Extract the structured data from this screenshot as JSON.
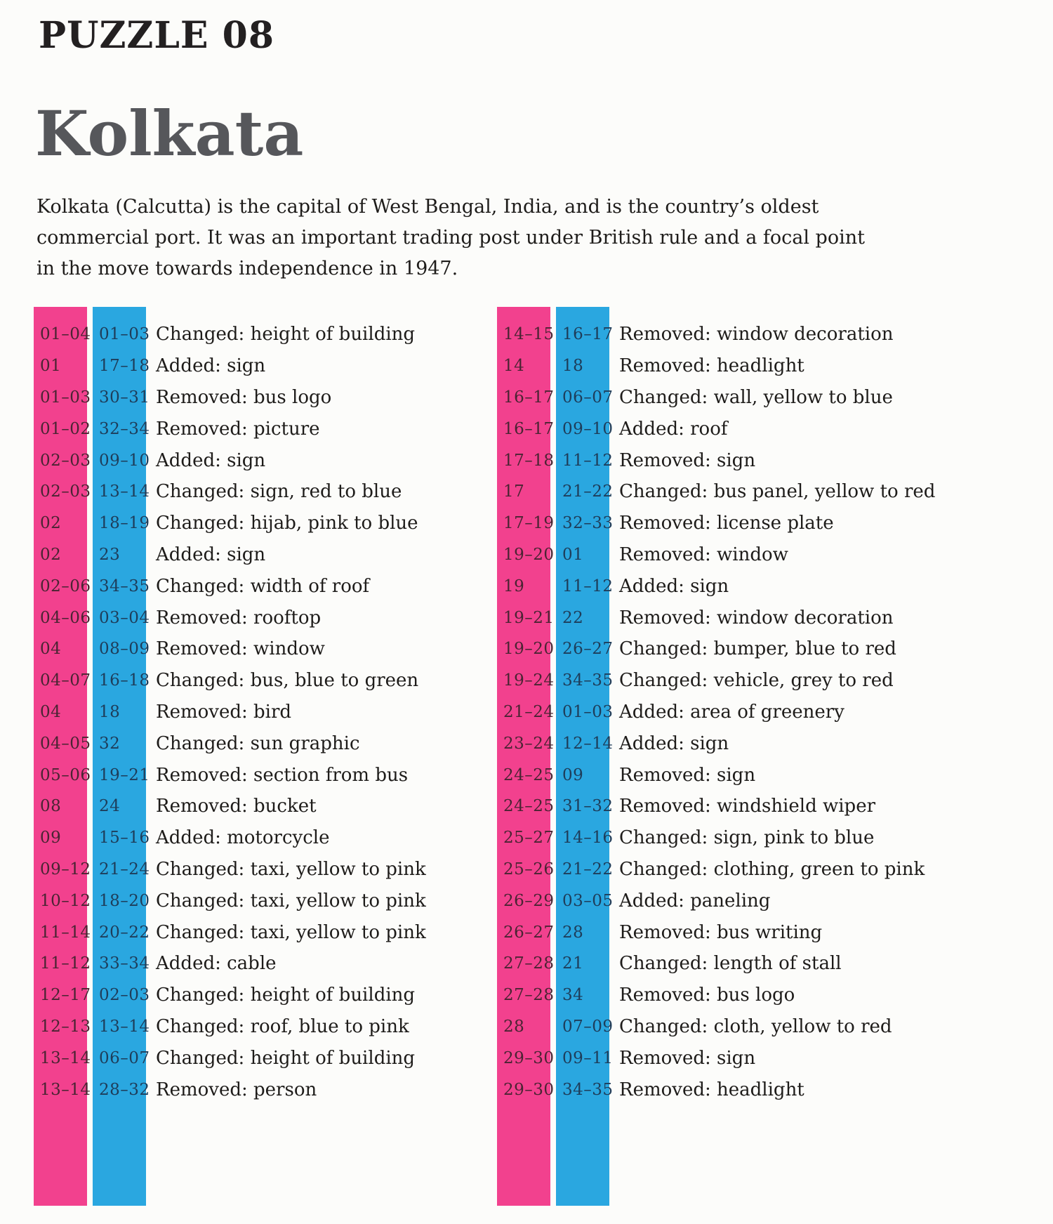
{
  "header": {
    "puzzle_label": "PUZZLE 08",
    "title": "Kolkata",
    "intro": "Kolkata (Calcutta) is the capital of West Bengal, India, and is the country’s oldest commercial port. It was an important trading post under British rule and a focal point in the move towards independence in 1947."
  },
  "legend": {
    "row_band_color": "#f2418e",
    "col_band_color": "#2aa7e0",
    "row_number_color": "#4a2433",
    "col_number_color": "#1e3d5a"
  },
  "answers": {
    "left": [
      {
        "row": "01–04",
        "col": "01–03",
        "desc": "Changed: height of building"
      },
      {
        "row": "01",
        "col": "17–18",
        "desc": "Added: sign"
      },
      {
        "row": "01–03",
        "col": "30–31",
        "desc": "Removed: bus logo"
      },
      {
        "row": "01–02",
        "col": "32–34",
        "desc": "Removed: picture"
      },
      {
        "row": "02–03",
        "col": "09–10",
        "desc": "Added: sign"
      },
      {
        "row": "02–03",
        "col": "13–14",
        "desc": "Changed: sign, red to blue"
      },
      {
        "row": "02",
        "col": "18–19",
        "desc": "Changed: hijab, pink to blue"
      },
      {
        "row": "02",
        "col": "23",
        "desc": "Added: sign"
      },
      {
        "row": "02–06",
        "col": "34–35",
        "desc": "Changed: width of roof"
      },
      {
        "row": "04–06",
        "col": "03–04",
        "desc": "Removed: rooftop"
      },
      {
        "row": "04",
        "col": "08–09",
        "desc": "Removed: window"
      },
      {
        "row": "04–07",
        "col": "16–18",
        "desc": "Changed: bus, blue to green"
      },
      {
        "row": "04",
        "col": "18",
        "desc": "Removed: bird"
      },
      {
        "row": "04–05",
        "col": "32",
        "desc": "Changed: sun graphic"
      },
      {
        "row": "05–06",
        "col": "19–21",
        "desc": "Removed: section from bus"
      },
      {
        "row": "08",
        "col": "24",
        "desc": "Removed: bucket"
      },
      {
        "row": "09",
        "col": "15–16",
        "desc": "Added: motorcycle"
      },
      {
        "row": "09–12",
        "col": "21–24",
        "desc": "Changed: taxi, yellow to pink"
      },
      {
        "row": "10–12",
        "col": "18–20",
        "desc": "Changed: taxi, yellow to pink"
      },
      {
        "row": "11–14",
        "col": "20–22",
        "desc": "Changed: taxi, yellow to pink"
      },
      {
        "row": "11–12",
        "col": "33–34",
        "desc": "Added: cable"
      },
      {
        "row": "12–17",
        "col": "02–03",
        "desc": "Changed: height of building"
      },
      {
        "row": "12–13",
        "col": "13–14",
        "desc": "Changed: roof, blue to pink"
      },
      {
        "row": "13–14",
        "col": "06–07",
        "desc": "Changed: height of building"
      },
      {
        "row": "13–14",
        "col": "28–32",
        "desc": "Removed: person"
      }
    ],
    "right": [
      {
        "row": "14–15",
        "col": "16–17",
        "desc": "Removed: window decoration"
      },
      {
        "row": "14",
        "col": "18",
        "desc": "Removed: headlight"
      },
      {
        "row": "16–17",
        "col": "06–07",
        "desc": "Changed: wall, yellow to blue"
      },
      {
        "row": "16–17",
        "col": "09–10",
        "desc": "Added: roof"
      },
      {
        "row": "17–18",
        "col": "11–12",
        "desc": "Removed: sign"
      },
      {
        "row": "17",
        "col": "21–22",
        "desc": "Changed: bus panel, yellow to red"
      },
      {
        "row": "17–19",
        "col": "32–33",
        "desc": "Removed: license plate"
      },
      {
        "row": "19–20",
        "col": "01",
        "desc": "Removed: window"
      },
      {
        "row": "19",
        "col": "11–12",
        "desc": "Added: sign"
      },
      {
        "row": "19–21",
        "col": "22",
        "desc": "Removed: window decoration"
      },
      {
        "row": "19–20",
        "col": "26–27",
        "desc": "Changed: bumper, blue to red"
      },
      {
        "row": "19–24",
        "col": "34–35",
        "desc": "Changed: vehicle, grey to red"
      },
      {
        "row": "21–24",
        "col": "01–03",
        "desc": "Added: area of greenery"
      },
      {
        "row": "23–24",
        "col": "12–14",
        "desc": "Added: sign"
      },
      {
        "row": "24–25",
        "col": "09",
        "desc": "Removed: sign"
      },
      {
        "row": "24–25",
        "col": "31–32",
        "desc": "Removed: windshield wiper"
      },
      {
        "row": "25–27",
        "col": "14–16",
        "desc": "Changed: sign, pink to blue"
      },
      {
        "row": "25–26",
        "col": "21–22",
        "desc": "Changed: clothing, green to pink"
      },
      {
        "row": "26–29",
        "col": "03–05",
        "desc": "Added: paneling"
      },
      {
        "row": "26–27",
        "col": "28",
        "desc": "Removed: bus writing"
      },
      {
        "row": "27–28",
        "col": "21",
        "desc": "Changed: length of stall"
      },
      {
        "row": "27–28",
        "col": "34",
        "desc": "Removed: bus logo"
      },
      {
        "row": "28",
        "col": "07–09",
        "desc": "Changed: cloth, yellow to red"
      },
      {
        "row": "29–30",
        "col": "09–11",
        "desc": "Removed: sign"
      },
      {
        "row": "29–30",
        "col": "34–35",
        "desc": "Removed: headlight"
      }
    ]
  }
}
